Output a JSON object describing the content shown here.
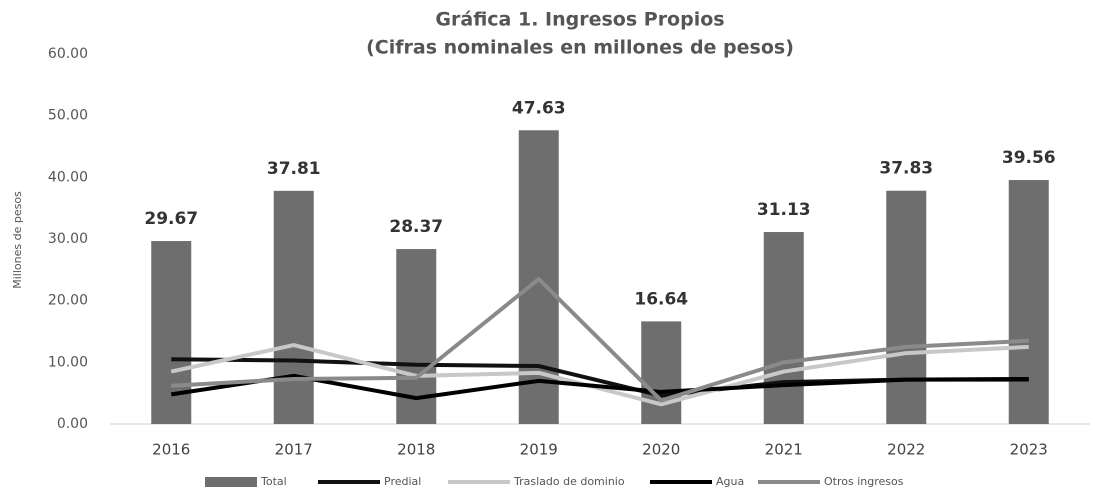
{
  "chart_data": {
    "type": "bar_line",
    "title": "Gráfica 1. Ingresos Propios",
    "subtitle": "(Cifras nominales en millones de pesos)",
    "y_label": "Millones de pesos",
    "categories": [
      "2016",
      "2017",
      "2018",
      "2019",
      "2020",
      "2021",
      "2022",
      "2023"
    ],
    "series": [
      {
        "name": "Total",
        "kind": "bar",
        "color": "#6e6e6e",
        "values": [
          29.67,
          37.81,
          28.37,
          47.63,
          16.64,
          31.13,
          37.83,
          39.56
        ]
      },
      {
        "name": "Predial",
        "kind": "line",
        "color": "#111111",
        "values": [
          10.5,
          10.3,
          9.6,
          9.4,
          4.6,
          6.8,
          7.2,
          7.2
        ]
      },
      {
        "name": "Traslado de dominio",
        "kind": "line",
        "color": "#c8c8c8",
        "values": [
          8.5,
          12.8,
          7.8,
          8.3,
          3.2,
          8.5,
          11.5,
          12.5
        ]
      },
      {
        "name": "Agua",
        "kind": "line",
        "color": "#000000",
        "values": [
          4.8,
          7.8,
          4.2,
          7.0,
          5.2,
          6.3,
          7.2,
          7.3
        ]
      },
      {
        "name": "Otros ingresos",
        "kind": "line",
        "color": "#8a8a8a",
        "values": [
          6.2,
          7.3,
          7.5,
          23.5,
          3.8,
          10.0,
          12.5,
          13.5
        ]
      }
    ],
    "ylim": [
      0,
      60
    ],
    "yticks": [
      {
        "value": 0,
        "label": "0.00"
      },
      {
        "value": 10,
        "label": "10.00"
      },
      {
        "value": 20,
        "label": "20.00"
      },
      {
        "value": 30,
        "label": "30.00"
      },
      {
        "value": 40,
        "label": "40.00"
      },
      {
        "value": 50,
        "label": "50.00"
      },
      {
        "value": 60,
        "label": "60.00"
      }
    ],
    "grid": false,
    "legend": "bottom"
  }
}
